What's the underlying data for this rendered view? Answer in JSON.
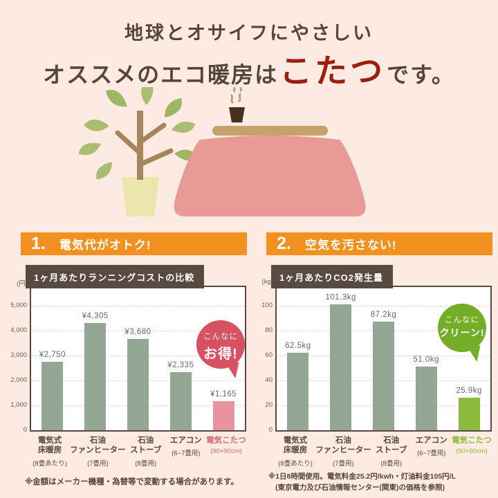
{
  "header": {
    "line1": "地球とオサイフにやさしい",
    "line2_prefix": "オススメのエコ暖房は",
    "line2_highlight": "こたつ",
    "line2_suffix": "です。"
  },
  "sections": [
    {
      "number": "1.",
      "heading": "電気代がオトク!",
      "badge_line1": "こんなに",
      "badge_line2": "お得!",
      "badge_color": "#d85162",
      "footnotes": [
        "※金額はメーカー機種・為替等で変動する場合があります。"
      ]
    },
    {
      "number": "2.",
      "heading": "空気を汚さない!",
      "badge_line1": "こんなに",
      "badge_line2": "クリーン!",
      "badge_color": "#74ad28",
      "footnotes": [
        "※1日8時間使用。電気料金25.2円/kwh・灯油料金105円/L",
        "(東京電力及び石油情報センター(関東)の価格を参照)"
      ]
    }
  ],
  "chart_data": [
    {
      "type": "bar",
      "title": "1ヶ月あたりランニングコストの比較",
      "ylabel": "(円)",
      "xlabel": "",
      "ylim": [
        0,
        5000
      ],
      "grid": true,
      "ytick_labels": [
        "5,000",
        "4,000",
        "3,000",
        "2,000",
        "1,000",
        "0"
      ],
      "categories": [
        "電気式床暖房",
        "石油ファンヒーター",
        "石油ストーブ",
        "エアコン",
        "電気こたつ"
      ],
      "category_lines": [
        [
          "電気式",
          "床暖房"
        ],
        [
          "石油",
          "ファンヒーター"
        ],
        [
          "石油",
          "ストーブ"
        ],
        [
          "エアコン"
        ],
        [
          "電気こたつ"
        ]
      ],
      "category_subs": [
        "(8畳あたり)",
        "(7畳用)",
        "(8畳用)",
        "(6~7畳用)",
        "(90×90cm)"
      ],
      "values": [
        2750,
        4305,
        3680,
        2335,
        1165
      ],
      "value_labels": [
        "¥2,750",
        "¥4,305",
        "¥3,680",
        "¥2,335",
        "¥1,165"
      ],
      "highlight_index": 4,
      "bar_color": "#94a795",
      "highlight_bar_color": "#e9939e",
      "highlight_text_color": "#d76b77"
    },
    {
      "type": "bar",
      "title": "1ヶ月あたりCO2発生量",
      "ylabel": "(kg)",
      "xlabel": "",
      "ylim": [
        0,
        100
      ],
      "grid": true,
      "ytick_labels": [
        "100",
        "80",
        "60",
        "40",
        "20",
        "0"
      ],
      "categories": [
        "電気式床暖房",
        "石油ファンヒーター",
        "石油ストーブ",
        "エアコン",
        "電気こたつ"
      ],
      "category_lines": [
        [
          "電気式",
          "床暖房"
        ],
        [
          "石油",
          "ファンヒーター"
        ],
        [
          "石油",
          "ストーブ"
        ],
        [
          "エアコン"
        ],
        [
          "電気こたつ"
        ]
      ],
      "category_subs": [
        "(8畳あたり)",
        "(7畳用)",
        "(8畳用)",
        "(6~7畳用)",
        "(90×90cm)"
      ],
      "values": [
        62.5,
        101.3,
        87.2,
        51.0,
        25.9
      ],
      "value_labels": [
        "62.5kg",
        "101.3kg",
        "87.2kg",
        "51.0kg",
        "25.9kg"
      ],
      "highlight_index": 4,
      "bar_color": "#94a795",
      "highlight_bar_color": "#8cba3c",
      "highlight_text_color": "#8cba3c"
    }
  ]
}
